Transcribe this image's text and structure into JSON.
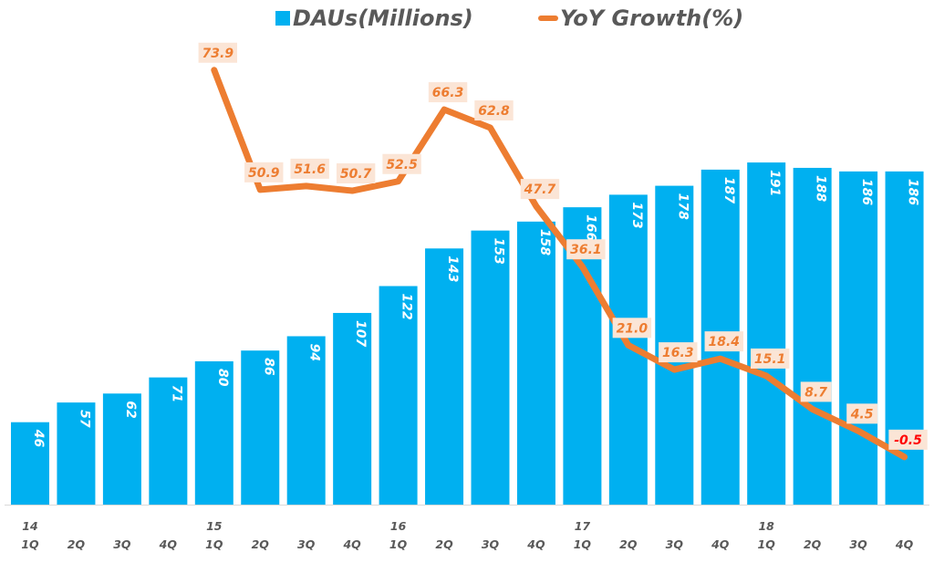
{
  "chart_data": {
    "type": "bar+line",
    "title": "",
    "legend": [
      {
        "name": "DAUs(Millions)",
        "kind": "bar",
        "color": "#00b0f0"
      },
      {
        "name": "YoY Growth(%)",
        "kind": "line",
        "color": "#ed7d31"
      }
    ],
    "legend_position": "top",
    "categories": [
      "1Q",
      "2Q",
      "3Q",
      "4Q",
      "1Q",
      "2Q",
      "3Q",
      "4Q",
      "1Q",
      "2Q",
      "3Q",
      "4Q",
      "1Q",
      "2Q",
      "3Q",
      "4Q",
      "1Q",
      "2Q",
      "3Q",
      "4Q"
    ],
    "year_labels": [
      "14",
      "",
      "",
      "",
      "15",
      "",
      "",
      "",
      "16",
      "",
      "",
      "",
      "17",
      "",
      "",
      "",
      "18",
      "",
      "",
      ""
    ],
    "series": [
      {
        "name": "DAUs(Millions)",
        "type": "bar",
        "color": "#00b0f0",
        "values": [
          46,
          57,
          62,
          71,
          80,
          86,
          94,
          107,
          122,
          143,
          153,
          158,
          166,
          173,
          178,
          187,
          191,
          188,
          186,
          186
        ]
      },
      {
        "name": "YoY Growth(%)",
        "type": "line",
        "color": "#ed7d31",
        "values": [
          null,
          null,
          null,
          null,
          73.9,
          50.9,
          51.6,
          50.7,
          52.5,
          66.3,
          62.8,
          47.7,
          36.1,
          21.0,
          16.3,
          18.4,
          15.1,
          8.7,
          4.5,
          -0.5
        ],
        "labels": [
          "",
          "",
          "",
          "",
          "73.9",
          "50.9",
          "51.6",
          "50.7",
          "52.5",
          "66.3",
          "62.8",
          "47.7",
          "36.1",
          "21.0",
          "16.3",
          "18.4",
          "15.1",
          "8.7",
          "4.5",
          "-0.5"
        ]
      }
    ],
    "grid": false,
    "xlabel": "",
    "ylabel": ""
  },
  "colors": {
    "bar": "#00b0f0",
    "line": "#ed7d31",
    "line_label_bg": "#fbe5d6",
    "negative_label": "#ff0000",
    "tick_text": "#595959"
  }
}
